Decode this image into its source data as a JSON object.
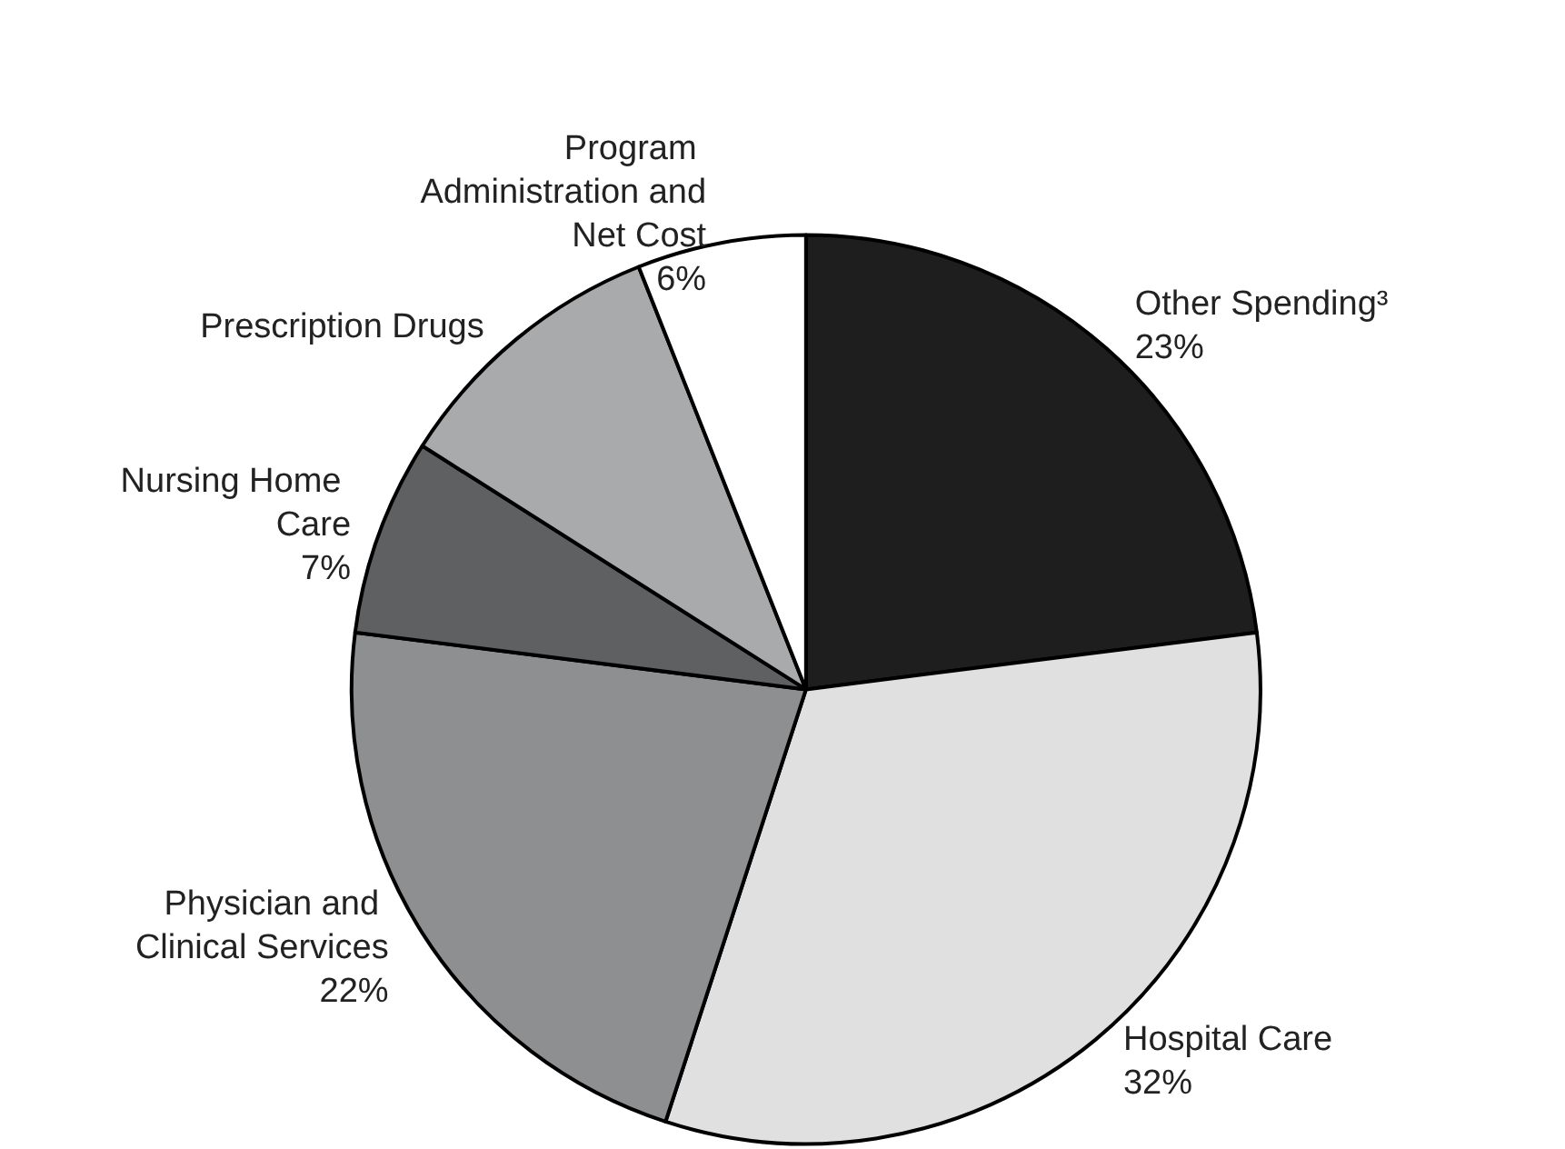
{
  "chart_data": {
    "type": "pie",
    "categories": [
      "Other Spending³",
      "Hospital Care",
      "Physician and Clinical Services",
      "Nursing Home Care",
      "Prescription Drugs",
      "Program Administration and Net Cost"
    ],
    "values": [
      23,
      32,
      22,
      7,
      10,
      6
    ],
    "value_labels": [
      "23%",
      "32%",
      "22%",
      "7%",
      null,
      "6%"
    ],
    "colors": [
      "#1e1e1e",
      "#e0e0e1",
      "#8e8f91",
      "#5f6062",
      "#a9aaac",
      "#ffffff"
    ],
    "legend": false
  }
}
